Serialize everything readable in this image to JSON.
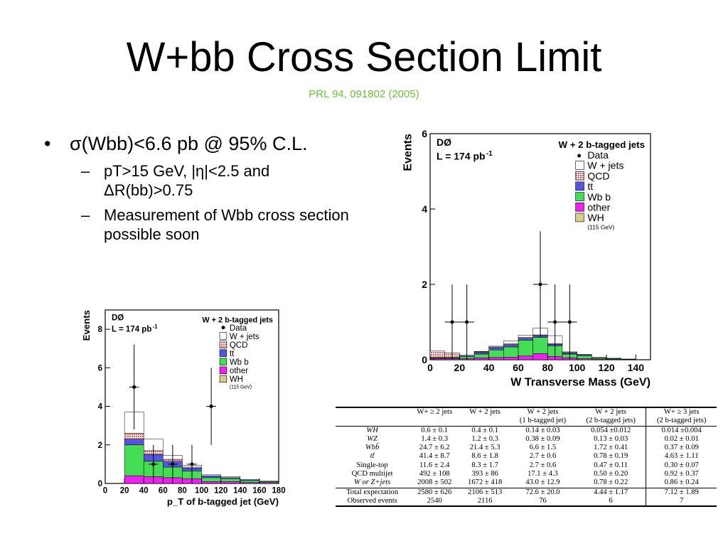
{
  "slide": {
    "title": "W+bb Cross Section Limit",
    "subtitle": "PRL 94, 091802 (2005)",
    "bullet_main": "σ(Wbb)<6.6 pb @ 95% C.L.",
    "sub_bullets": [
      "pT>15 GeV, |η|<2.5 and ΔR(bb)>0.75",
      "Measurement of Wbb cross section possible soon"
    ]
  },
  "colors": {
    "qcd": "#ee5a5a",
    "ttbar": "#5555dd",
    "wbb": "#44dd55",
    "other": "#ee22ee",
    "wh": "#d6cc8e",
    "wjets": "#ffffff",
    "subtitle": "#6bbf3a"
  },
  "legend_entries": [
    "Data",
    "W + jets",
    "QCD",
    "tt",
    "Wb b",
    "other",
    "WH",
    "(115 GeV)"
  ],
  "chart_data": [
    {
      "type": "bar",
      "stacked": true,
      "experiment_label": "DØ",
      "luminosity_label": "L = 174 pb",
      "lumi_exp": "-1",
      "channel_label": "W + 2 b-tagged jets",
      "xlabel": "W Transverse Mass (GeV)",
      "ylabel": "Events",
      "xlim": [
        0,
        150
      ],
      "ylim": [
        0,
        6
      ],
      "xticks": [
        0,
        20,
        40,
        60,
        80,
        100,
        120,
        140
      ],
      "yticks": [
        0,
        2,
        4,
        6
      ],
      "bin_edges": [
        0,
        10,
        20,
        30,
        40,
        50,
        60,
        70,
        80,
        90,
        100,
        110,
        120,
        130,
        140
      ],
      "series": [
        {
          "name": "other",
          "values": [
            0.03,
            0.03,
            0.03,
            0.05,
            0.06,
            0.07,
            0.1,
            0.16,
            0.09,
            0.05,
            0.03,
            0.02,
            0.01,
            0.01
          ]
        },
        {
          "name": "Wbb",
          "values": [
            0.02,
            0.02,
            0.05,
            0.1,
            0.2,
            0.27,
            0.42,
            0.43,
            0.28,
            0.1,
            0.08,
            0.03,
            0.02,
            0.01
          ]
        },
        {
          "name": "tt",
          "values": [
            0.01,
            0.01,
            0.02,
            0.04,
            0.06,
            0.06,
            0.05,
            0.05,
            0.04,
            0.03,
            0.02,
            0.01,
            0.01,
            0.0
          ]
        },
        {
          "name": "QCD",
          "values": [
            0.17,
            0.12,
            0.02,
            0.02,
            0.02,
            0.02,
            0.02,
            0.02,
            0.02,
            0.01,
            0.01,
            0.0,
            0.0,
            0.0
          ]
        },
        {
          "name": "W + jets",
          "values": [
            0.0,
            0.0,
            0.0,
            0.01,
            0.02,
            0.08,
            0.06,
            0.18,
            0.21,
            0.02,
            0.0,
            0.0,
            0.0,
            0.0
          ]
        }
      ],
      "data_points": [
        {
          "x": 15,
          "y": 1,
          "err": 1
        },
        {
          "x": 25,
          "y": 1,
          "err": 1
        },
        {
          "x": 75,
          "y": 2,
          "err": 1.41
        },
        {
          "x": 85,
          "y": 1,
          "err": 1
        },
        {
          "x": 95,
          "y": 1,
          "err": 1
        }
      ]
    },
    {
      "type": "bar",
      "stacked": true,
      "experiment_label": "DØ",
      "luminosity_label": "L = 174 pb",
      "lumi_exp": "-1",
      "channel_label": "W + 2 b-tagged jets",
      "xlabel": "p_T of b-tagged jet  (GeV)",
      "ylabel": "Events",
      "xlim": [
        0,
        180
      ],
      "ylim": [
        0,
        9
      ],
      "xticks": [
        0,
        20,
        40,
        60,
        80,
        100,
        120,
        140,
        160,
        180
      ],
      "yticks": [
        0,
        2,
        4,
        6,
        8
      ],
      "bin_edges": [
        20,
        40,
        60,
        80,
        100,
        120,
        140,
        160,
        180
      ],
      "series": [
        {
          "name": "other",
          "values": [
            0.4,
            0.35,
            0.3,
            0.25,
            0.1,
            0.1,
            0.05,
            0.05
          ]
        },
        {
          "name": "Wbb",
          "values": [
            1.6,
            0.8,
            0.55,
            0.4,
            0.2,
            0.15,
            0.1,
            0.05
          ]
        },
        {
          "name": "tt",
          "values": [
            0.3,
            0.35,
            0.3,
            0.15,
            0.1,
            0.05,
            0.05,
            0.02
          ]
        },
        {
          "name": "QCD",
          "values": [
            0.3,
            0.2,
            0.1,
            0.05,
            0.0,
            0.0,
            0.0,
            0.0
          ]
        },
        {
          "name": "W + jets",
          "values": [
            1.1,
            0.6,
            0.2,
            0.1,
            0.05,
            0.05,
            0.0,
            0.0
          ]
        }
      ],
      "data_points": [
        {
          "x": 30,
          "y": 5,
          "err": 2.2
        },
        {
          "x": 50,
          "y": 1,
          "err": 1
        },
        {
          "x": 70,
          "y": 1,
          "err": 1
        },
        {
          "x": 90,
          "y": 1,
          "err": 1
        },
        {
          "x": 110,
          "y": 4,
          "err": 2
        }
      ]
    }
  ],
  "table": {
    "header1": [
      "",
      "W+ ≥ 2 jets",
      "W + 2 jets",
      "W + 2 jets",
      "W + 2 jets",
      "W+ ≥ 3 jets"
    ],
    "header2": [
      "",
      "",
      "",
      "(1 b-tagged jet)",
      "(2 b-tagged jets)",
      "(2 b-tagged jets)"
    ],
    "rows": [
      [
        "WH",
        "0.6 ± 0.1",
        "0.4 ± 0.1",
        "0.14 ± 0.03",
        "0.054 ±0.012",
        "0.014 ±0.004"
      ],
      [
        "WZ",
        "1.4 ± 0.3",
        "1.2 ± 0.3",
        "0.38 ± 0.09",
        "0.13 ± 0.03",
        "0.02 ± 0.01"
      ],
      [
        "Wbb̄",
        "24.7 ± 6.2",
        "21.4 ± 5.3",
        "6.6 ± 1.5",
        "1.72 ± 0.41",
        "0.37 ± 0.09"
      ],
      [
        "tt̄",
        "41.4 ± 8.7",
        "8.6 ± 1.8",
        "2.7 ± 0.6",
        "0.78 ± 0.19",
        "4.63 ± 1.11"
      ],
      [
        "Single-top",
        "11.6 ± 2.4",
        "8.3 ± 1.7",
        "2.7 ± 0.6",
        "0.47 ± 0.11",
        "0.30 ± 0.07"
      ],
      [
        "QCD multijet",
        "492 ± 108",
        "393 ± 86",
        "17.1 ± 4.3",
        "0.50 ± 0.20",
        "0.92 ± 0.37"
      ],
      [
        "W or Z+jets",
        "2008 ± 502",
        "1672 ± 418",
        "43.0 ± 12.9",
        "0.78 ± 0.22",
        "0.86 ± 0.24"
      ]
    ],
    "total_row": [
      "Total expectation",
      "2580 ± 626",
      "2106 ± 513",
      "72.6 ± 20.0",
      "4.44 ± 1.17",
      "7.12 ± 1.89"
    ],
    "observed_row": [
      "Observed events",
      "2540",
      "2116",
      "76",
      "6",
      "7"
    ]
  }
}
